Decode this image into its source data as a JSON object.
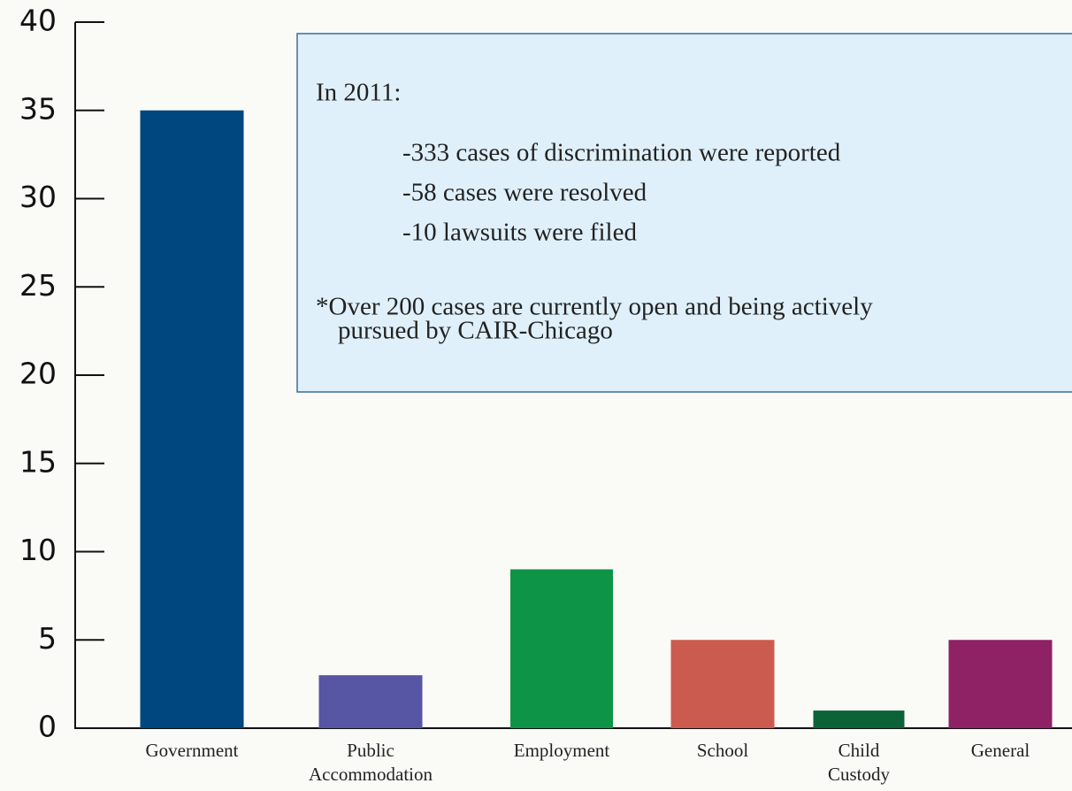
{
  "chart_data": {
    "type": "bar",
    "categories": [
      "Government",
      "Public Accommodation",
      "Employment",
      "School",
      "Child Custody",
      "General"
    ],
    "values": [
      35,
      3,
      9,
      5,
      1,
      5
    ],
    "colors": [
      "#00467f",
      "#5756a4",
      "#0e9447",
      "#cc5b4f",
      "#0c6338",
      "#8f2165"
    ],
    "ylim": [
      0,
      40
    ],
    "yticks": [
      0,
      5,
      10,
      15,
      20,
      25,
      30,
      35,
      40
    ],
    "annotation": {
      "heading": "In 2011:",
      "items": [
        "-333 cases of discrimination were reported",
        "-58 cases were resolved",
        "-10 lawsuits were filed"
      ],
      "note": [
        "*Over 200 cases are currently open and being actively",
        "pursued by CAIR-Chicago"
      ]
    }
  }
}
